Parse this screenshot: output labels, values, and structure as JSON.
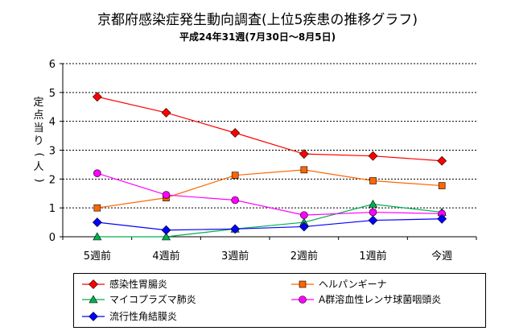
{
  "title": "京都府感染症発生動向調査(上位5疾患の推移グラフ)",
  "subtitle": "平成24年31週(7月30日〜8月5日)",
  "chart_data": {
    "type": "line",
    "title": "京都府感染症発生動向調査(上位5疾患の推移グラフ)",
    "subtitle": "平成24年31週(7月30日〜8月5日)",
    "ylabel": "定点当り(人)",
    "ylabel_chars": [
      "定",
      "点",
      "当",
      "り",
      "(",
      "人",
      ")"
    ],
    "xlabel": "",
    "categories": [
      "5週前",
      "4週前",
      "3週前",
      "2週前",
      "1週前",
      "今週"
    ],
    "ylim": [
      0,
      6
    ],
    "yticks": [
      "0",
      "1",
      "2",
      "3",
      "4",
      "5",
      "6"
    ],
    "grid": "horizontal dotted",
    "legend_position": "bottom",
    "series": [
      {
        "name": "感染性胃腸炎",
        "values": [
          4.85,
          4.3,
          3.6,
          2.87,
          2.8,
          2.63
        ],
        "color": "#ff0000",
        "marker": "diamond"
      },
      {
        "name": "ヘルパンギーナ",
        "values": [
          1.0,
          1.35,
          2.13,
          2.32,
          1.94,
          1.77
        ],
        "color": "#ff6600",
        "marker": "square"
      },
      {
        "name": "マイコプラズマ肺炎",
        "values": [
          0.0,
          0.0,
          0.27,
          0.5,
          1.13,
          0.85
        ],
        "color": "#00b050",
        "marker": "triangle"
      },
      {
        "name": "A群溶血性レンサ球菌咽頭炎",
        "values": [
          2.2,
          1.45,
          1.27,
          0.75,
          0.85,
          0.8
        ],
        "color": "#ff00ff",
        "marker": "circle"
      },
      {
        "name": "流行性角結膜炎",
        "values": [
          0.5,
          0.23,
          0.27,
          0.35,
          0.57,
          0.62
        ],
        "color": "#0000ff",
        "marker": "diamond"
      }
    ]
  }
}
